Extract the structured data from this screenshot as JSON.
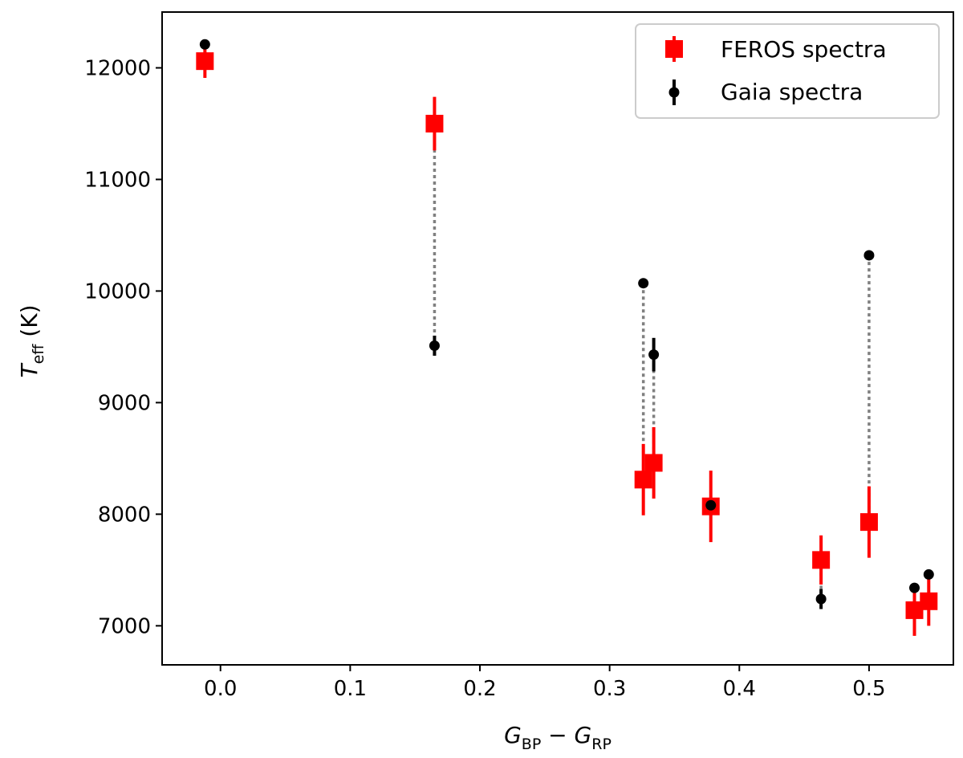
{
  "chart_data": {
    "type": "scatter",
    "xlabel": {
      "main_a": "G",
      "sub_a": "BP",
      "op": " − ",
      "main_b": "G",
      "sub_b": "RP"
    },
    "ylabel": {
      "main": "T",
      "sub": "eff",
      "unit": " (K)"
    },
    "xlim": [
      -0.045,
      0.565
    ],
    "ylim": [
      6650,
      12500
    ],
    "xticks": [
      0.0,
      0.1,
      0.2,
      0.3,
      0.4,
      0.5
    ],
    "xtick_labels": [
      "0.0",
      "0.1",
      "0.2",
      "0.3",
      "0.4",
      "0.5"
    ],
    "yticks": [
      7000,
      8000,
      9000,
      10000,
      11000,
      12000
    ],
    "ytick_labels": [
      "7000",
      "8000",
      "9000",
      "10000",
      "11000",
      "12000"
    ],
    "legend_position": "top-right",
    "colors": {
      "feros": "#ff0000",
      "gaia": "#000000",
      "connector": "#808080"
    },
    "series": [
      {
        "name": "FEROS spectra",
        "marker": "square",
        "points": [
          {
            "x": -0.012,
            "y": 12060,
            "yerr": 150
          },
          {
            "x": 0.165,
            "y": 11500,
            "yerr": 240
          },
          {
            "x": 0.326,
            "y": 8310,
            "yerr": 320
          },
          {
            "x": 0.334,
            "y": 8460,
            "yerr": 320
          },
          {
            "x": 0.378,
            "y": 8070,
            "yerr": 320
          },
          {
            "x": 0.463,
            "y": 7590,
            "yerr": 220
          },
          {
            "x": 0.5,
            "y": 7930,
            "yerr": 320
          },
          {
            "x": 0.535,
            "y": 7140,
            "yerr": 230
          },
          {
            "x": 0.546,
            "y": 7220,
            "yerr": 220
          }
        ]
      },
      {
        "name": "Gaia spectra",
        "marker": "circle",
        "points": [
          {
            "x": -0.012,
            "y": 12210,
            "yerr": 0
          },
          {
            "x": 0.165,
            "y": 9510,
            "yerr": 90
          },
          {
            "x": 0.326,
            "y": 10070,
            "yerr": 0
          },
          {
            "x": 0.334,
            "y": 9430,
            "yerr": 150
          },
          {
            "x": 0.378,
            "y": 8080,
            "yerr": 0
          },
          {
            "x": 0.463,
            "y": 7240,
            "yerr": 90
          },
          {
            "x": 0.5,
            "y": 10320,
            "yerr": 0
          },
          {
            "x": 0.535,
            "y": 7340,
            "yerr": 0
          },
          {
            "x": 0.546,
            "y": 7460,
            "yerr": 0
          }
        ]
      }
    ]
  }
}
